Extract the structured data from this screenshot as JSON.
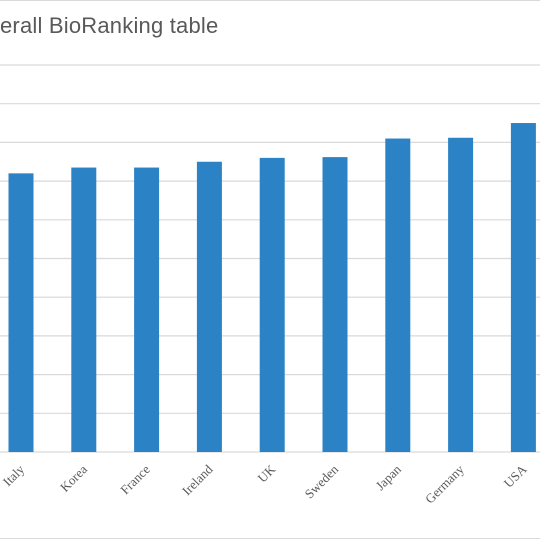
{
  "chart_data": {
    "type": "bar",
    "title": "erall BioRanking table",
    "categories": [
      "Italy",
      "Korea",
      "France",
      "Ireland",
      "UK",
      "Sweden",
      "Japan",
      "Germany",
      "USA"
    ],
    "values": [
      7.2,
      7.35,
      7.35,
      7.5,
      7.6,
      7.62,
      8.1,
      8.12,
      8.5
    ],
    "ylim": [
      0,
      10
    ],
    "grid": true,
    "color": "#2b82c5"
  }
}
